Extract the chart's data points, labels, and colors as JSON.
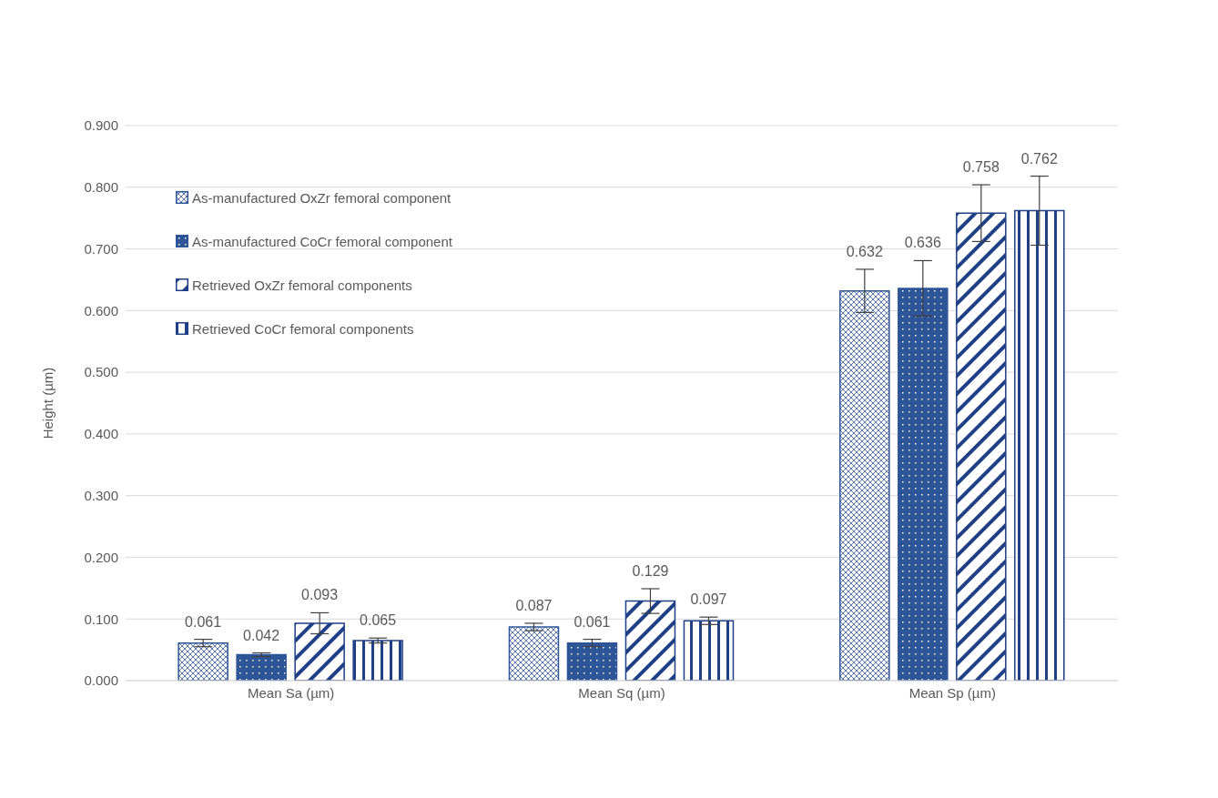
{
  "chart_data": {
    "type": "bar",
    "ylabel": "Height (µm)",
    "categories": [
      "Mean Sa (µm)",
      "Mean Sq (µm)",
      "Mean Sp (µm)"
    ],
    "series": [
      {
        "name": "As-manufactured OxZr femoral component",
        "color": "#2e5597",
        "values": [
          0.061,
          0.087,
          0.632
        ],
        "errors": [
          0.006,
          0.006,
          0.035
        ]
      },
      {
        "name": "As-manufactured CoCr  femoral component",
        "color": "#2e5597",
        "values": [
          0.042,
          0.061,
          0.636
        ],
        "errors": [
          0.003,
          0.006,
          0.045
        ]
      },
      {
        "name": "Retrieved OxZr femoral components",
        "color": "#1f3f86",
        "values": [
          0.093,
          0.129,
          0.758
        ],
        "errors": [
          0.017,
          0.02,
          0.046
        ]
      },
      {
        "name": "Retrieved CoCr  femoral components",
        "color": "#1f3f86",
        "values": [
          0.065,
          0.097,
          0.762
        ],
        "errors": [
          0.004,
          0.006,
          0.056
        ]
      }
    ],
    "ylim": [
      0,
      0.9
    ],
    "yticks": [
      {
        "value": 0,
        "label": "0.000"
      },
      {
        "value": 0.1,
        "label": "0.100"
      },
      {
        "value": 0.2,
        "label": "0.200"
      },
      {
        "value": 0.3,
        "label": "0.300"
      },
      {
        "value": 0.4,
        "label": "0.400"
      },
      {
        "value": 0.5,
        "label": "0.500"
      },
      {
        "value": 0.6,
        "label": "0.600"
      },
      {
        "value": 0.7,
        "label": "0.700"
      },
      {
        "value": 0.8,
        "label": "0.800"
      },
      {
        "value": 0.9,
        "label": "0.900"
      }
    ],
    "grid": "y",
    "legend": "top left",
    "data_labels": true
  }
}
